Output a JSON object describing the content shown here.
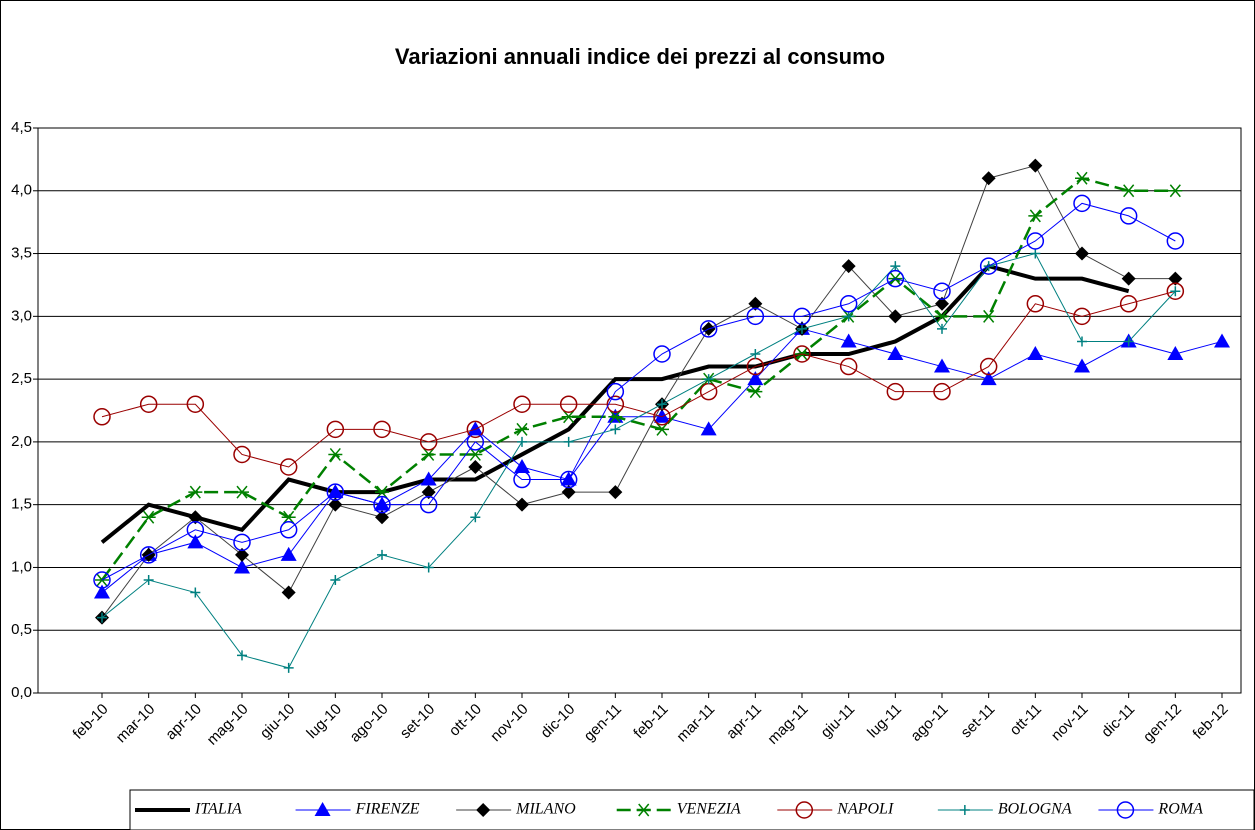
{
  "chart_data": {
    "type": "line",
    "title": "Variazioni annuali indice dei prezzi al consumo",
    "categories": [
      "feb-10",
      "mar-10",
      "apr-10",
      "mag-10",
      "giu-10",
      "lug-10",
      "ago-10",
      "set-10",
      "ott-10",
      "nov-10",
      "dic-10",
      "gen-11",
      "feb-11",
      "mar-11",
      "apr-11",
      "mag-11",
      "giu-11",
      "lug-11",
      "ago-11",
      "set-11",
      "ott-11",
      "nov-11",
      "dic-11",
      "gen-12",
      "feb-12"
    ],
    "ylim": [
      0,
      4.5
    ],
    "yticks": [
      {
        "value": 0,
        "label": "0,0"
      },
      {
        "value": 0.5,
        "label": "0,5"
      },
      {
        "value": 1,
        "label": "1,0"
      },
      {
        "value": 1.5,
        "label": "1,5"
      },
      {
        "value": 2,
        "label": "2,0"
      },
      {
        "value": 2.5,
        "label": "2,5"
      },
      {
        "value": 3,
        "label": "3,0"
      },
      {
        "value": 3.5,
        "label": "3,5"
      },
      {
        "value": 4,
        "label": "4,0"
      },
      {
        "value": 4.5,
        "label": "4,5"
      }
    ],
    "grid": true,
    "legend": "bottom",
    "series": [
      {
        "name": "ITALIA",
        "color": "#000000",
        "marker": "none",
        "line_style": "solid",
        "line_width": 4,
        "values": [
          1.2,
          1.5,
          1.4,
          1.3,
          1.7,
          1.6,
          1.6,
          1.7,
          1.7,
          1.9,
          2.1,
          2.5,
          2.5,
          2.6,
          2.6,
          2.7,
          2.7,
          2.8,
          3.0,
          3.4,
          3.3,
          3.3,
          3.2,
          null,
          null
        ]
      },
      {
        "name": "FIRENZE",
        "color": "#0000ff",
        "marker": "triangle",
        "line_style": "solid",
        "line_width": 1,
        "values": [
          0.8,
          1.1,
          1.2,
          1.0,
          1.1,
          1.6,
          1.5,
          1.7,
          2.1,
          1.8,
          1.7,
          2.2,
          2.2,
          2.1,
          2.5,
          2.9,
          2.8,
          2.7,
          2.6,
          2.5,
          2.7,
          2.6,
          2.8,
          2.7,
          2.8
        ]
      },
      {
        "name": "MILANO",
        "color": "#404040",
        "marker": "diamond",
        "line_style": "solid",
        "line_width": 1,
        "values": [
          0.6,
          1.1,
          1.4,
          1.1,
          0.8,
          1.5,
          1.4,
          1.6,
          1.8,
          1.5,
          1.6,
          1.6,
          2.3,
          2.9,
          3.1,
          2.9,
          3.4,
          3.0,
          3.1,
          4.1,
          4.2,
          3.5,
          3.3,
          3.3,
          null
        ]
      },
      {
        "name": "VENEZIA",
        "color": "#008000",
        "marker": "star",
        "line_style": "dashed",
        "line_width": 2.5,
        "values": [
          0.9,
          1.4,
          1.6,
          1.6,
          1.4,
          1.9,
          1.6,
          1.9,
          1.9,
          2.1,
          2.2,
          2.2,
          2.1,
          2.5,
          2.4,
          2.7,
          3.0,
          3.3,
          3.0,
          3.0,
          3.8,
          4.1,
          4.0,
          4.0,
          null
        ]
      },
      {
        "name": "NAPOLI",
        "color": "#9a0000",
        "marker": "circle",
        "line_style": "solid",
        "line_width": 1,
        "values": [
          2.2,
          2.3,
          2.3,
          1.9,
          1.8,
          2.1,
          2.1,
          2.0,
          2.1,
          2.3,
          2.3,
          2.3,
          2.2,
          2.4,
          2.6,
          2.7,
          2.6,
          2.4,
          2.4,
          2.6,
          3.1,
          3.0,
          3.1,
          3.2,
          null
        ]
      },
      {
        "name": "BOLOGNA",
        "color": "#008080",
        "marker": "plus",
        "line_style": "solid",
        "line_width": 1,
        "values": [
          0.6,
          0.9,
          0.8,
          0.3,
          0.2,
          0.9,
          1.1,
          1.0,
          1.4,
          2.0,
          2.0,
          2.1,
          2.3,
          2.5,
          2.7,
          2.9,
          3.0,
          3.4,
          2.9,
          3.4,
          3.5,
          2.8,
          2.8,
          3.2,
          null
        ]
      },
      {
        "name": "ROMA",
        "color": "#0000ff",
        "marker": "circle",
        "line_style": "solid",
        "line_width": 1,
        "values": [
          0.9,
          1.1,
          1.3,
          1.2,
          1.3,
          1.6,
          1.5,
          1.5,
          2.0,
          1.7,
          1.7,
          2.4,
          2.7,
          2.9,
          3.0,
          3.0,
          3.1,
          3.3,
          3.2,
          3.4,
          3.6,
          3.9,
          3.8,
          3.6,
          null
        ]
      }
    ]
  }
}
